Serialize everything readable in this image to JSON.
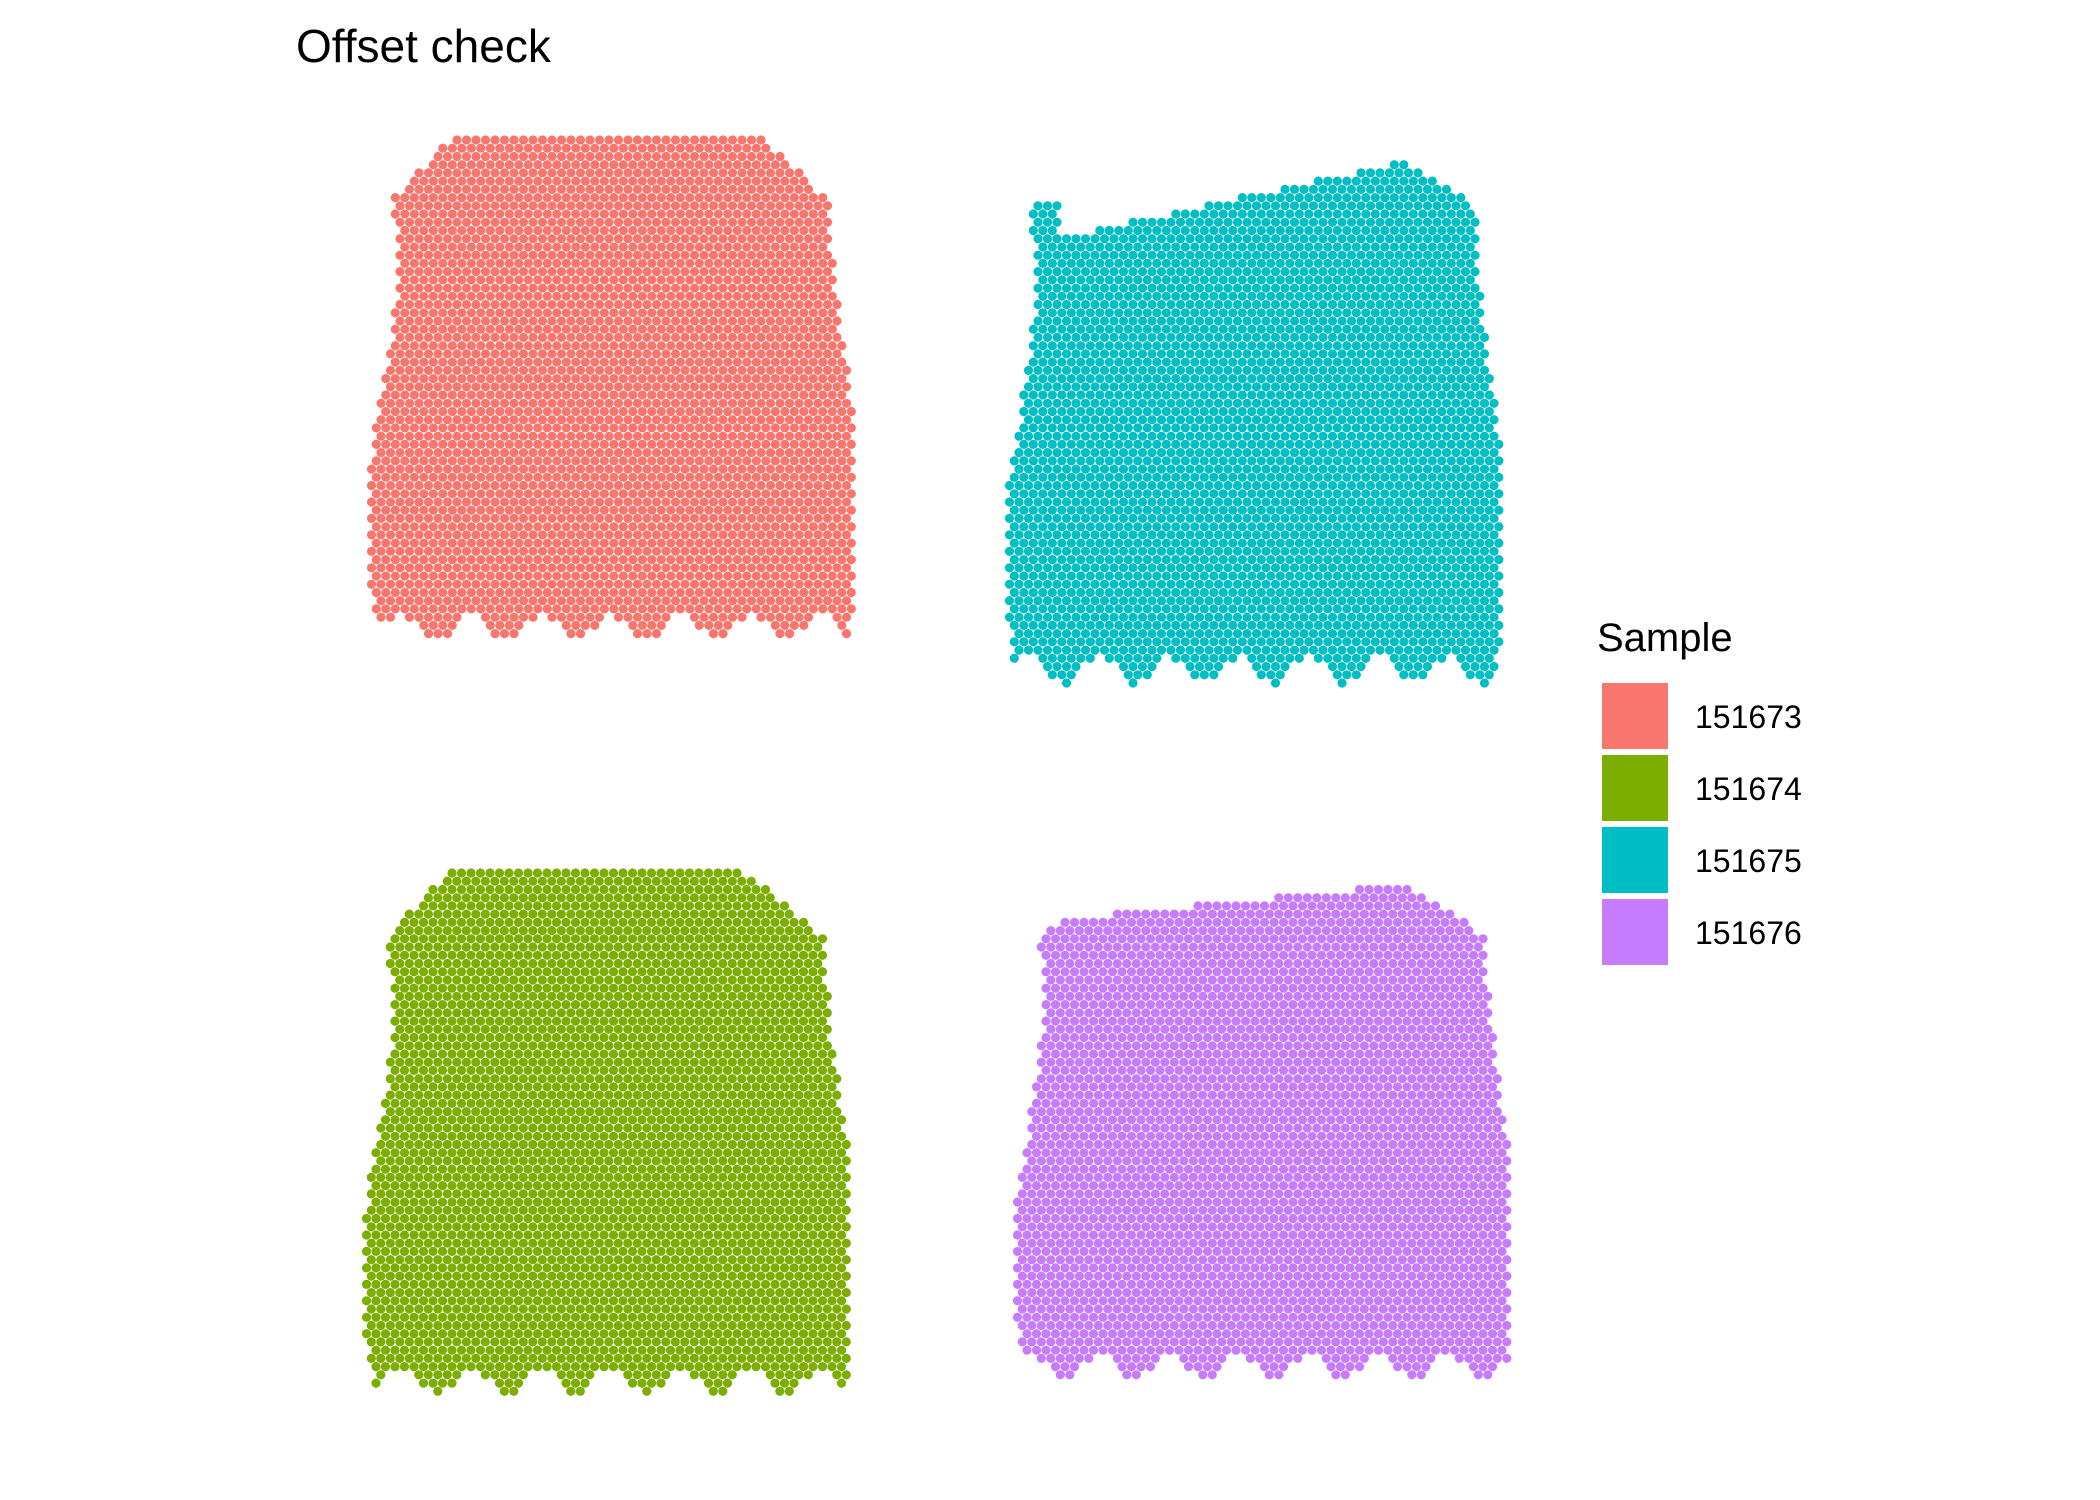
{
  "chart_data": {
    "type": "scatter",
    "title": "Offset check",
    "xlabel": "",
    "ylabel": "",
    "grid": false,
    "axes_visible": false,
    "legend_position": "right",
    "legend": {
      "title": "Sample",
      "entries": [
        {
          "name": "151673",
          "color": "#F8766D"
        },
        {
          "name": "151674",
          "color": "#7CAE00"
        },
        {
          "name": "151675",
          "color": "#00BFC4"
        },
        {
          "name": "151676",
          "color": "#C77CFF"
        }
      ]
    },
    "facets": [
      {
        "sample": "151673",
        "color": "#F8766D",
        "row": 1,
        "col": 1
      },
      {
        "sample": "151675",
        "color": "#00BFC4",
        "row": 1,
        "col": 2
      },
      {
        "sample": "151674",
        "color": "#7CAE00",
        "row": 2,
        "col": 1
      },
      {
        "sample": "151676",
        "color": "#C77CFF",
        "row": 2,
        "col": 2
      }
    ],
    "marker": "hexagonal spot grid (tissue section)"
  }
}
